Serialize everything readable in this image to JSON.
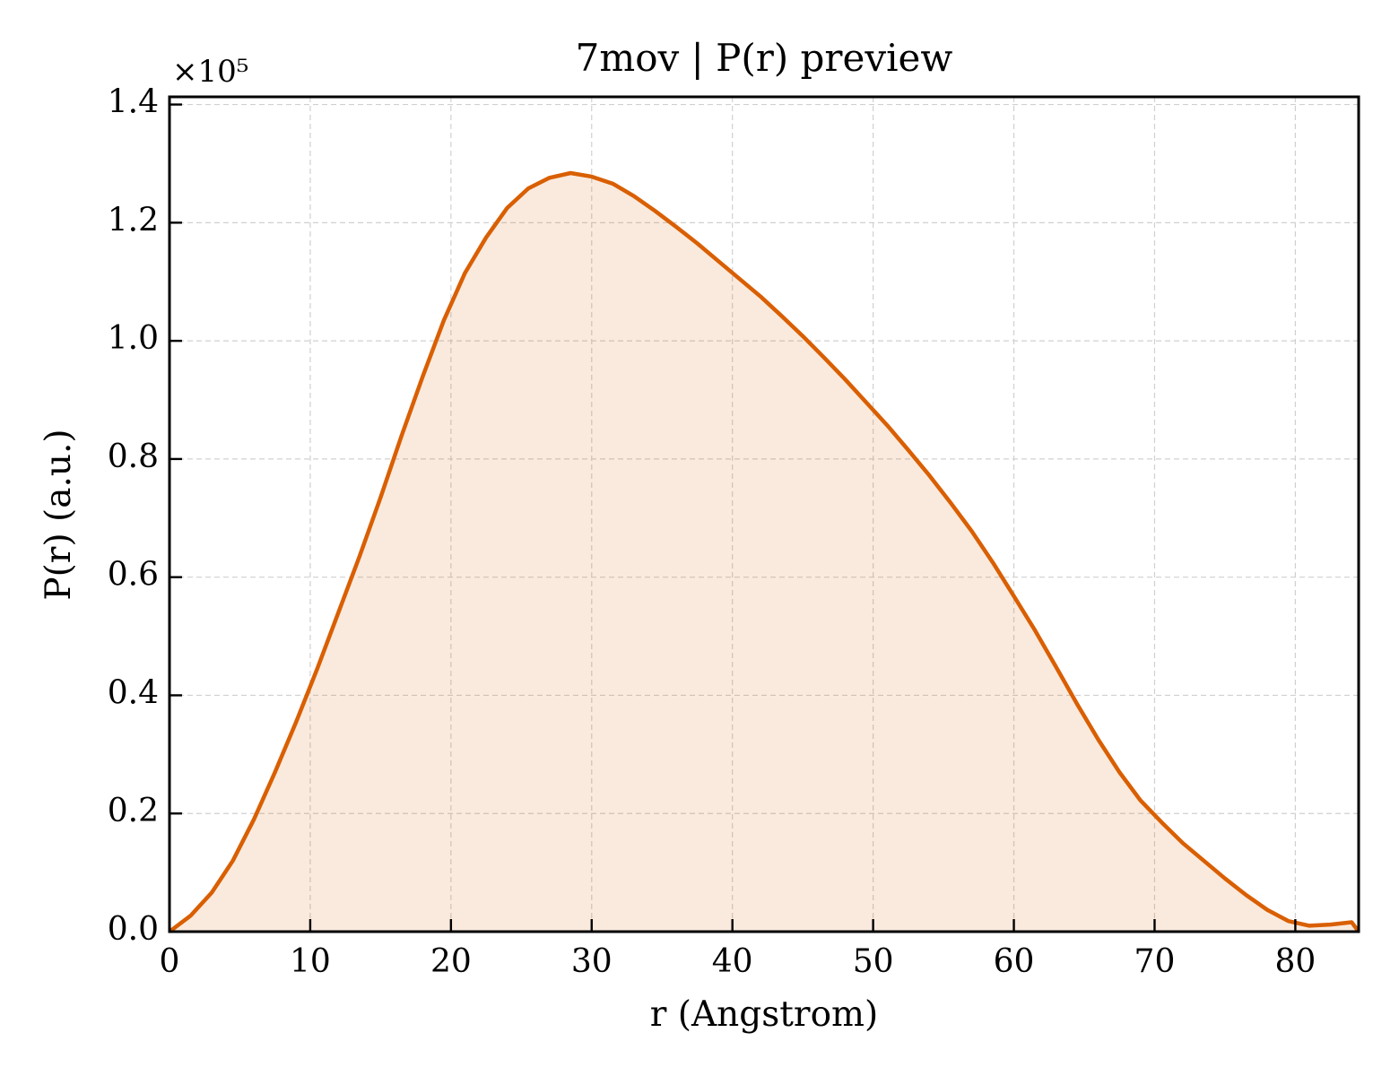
{
  "chart_data": {
    "type": "area",
    "title": "7mov | P(r) preview",
    "x_label": "r (Angstrom)",
    "y_label": "P(r) (a.u.)",
    "y_offset_label": "×10⁵",
    "x": [
      0,
      1.5,
      3,
      4.5,
      6,
      7.5,
      9,
      10.5,
      12,
      13.5,
      15,
      16.5,
      18,
      19.5,
      21,
      22.5,
      24,
      25.5,
      27,
      28.5,
      30,
      31.5,
      33,
      34.5,
      36,
      37.5,
      39,
      40.5,
      42,
      43.5,
      45,
      46.5,
      48,
      49.5,
      51,
      52.5,
      54,
      55.5,
      57,
      58.5,
      60,
      61.5,
      63,
      64.5,
      66,
      67.5,
      69,
      70.5,
      72,
      73.5,
      75,
      76.5,
      78,
      79.5,
      81,
      82.5,
      84,
      84.5
    ],
    "series": [
      {
        "color": "#d95f02",
        "values": [
          0,
          0.027,
          0.066,
          0.12,
          0.19,
          0.27,
          0.355,
          0.445,
          0.54,
          0.635,
          0.735,
          0.84,
          0.94,
          1.035,
          1.115,
          1.175,
          1.225,
          1.258,
          1.276,
          1.284,
          1.278,
          1.266,
          1.245,
          1.22,
          1.193,
          1.165,
          1.135,
          1.105,
          1.075,
          1.042,
          1.008,
          0.972,
          0.935,
          0.896,
          0.857,
          0.815,
          0.772,
          0.726,
          0.678,
          0.625,
          0.568,
          0.51,
          0.448,
          0.385,
          0.325,
          0.27,
          0.222,
          0.185,
          0.15,
          0.12,
          0.09,
          0.062,
          0.037,
          0.018,
          0.01,
          0.012,
          0.016,
          0
        ]
      }
    ],
    "xlim": [
      0,
      84.5
    ],
    "ylim": [
      0,
      1.413
    ],
    "xticks": [
      0,
      10,
      20,
      30,
      40,
      50,
      60,
      70,
      80
    ],
    "yticks": [
      {
        "value": 0,
        "label": "0.0"
      },
      0.2,
      0.4,
      0.6,
      0.8,
      {
        "value": 1,
        "label": "1.0"
      },
      1.2,
      1.4
    ],
    "grid": true
  }
}
